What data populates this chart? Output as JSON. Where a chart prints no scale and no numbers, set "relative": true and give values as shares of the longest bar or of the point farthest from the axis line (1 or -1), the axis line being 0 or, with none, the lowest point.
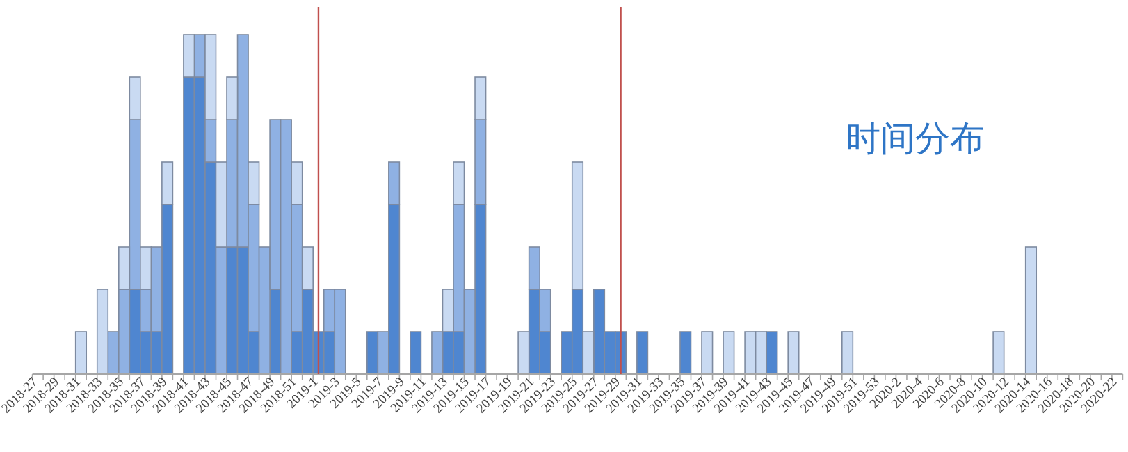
{
  "chart_data": {
    "type": "bar",
    "title": "时间分布",
    "stacked": true,
    "relative": true,
    "categories": [
      "2018-27",
      null,
      "2018-29",
      null,
      "2018-31",
      null,
      "2018-33",
      null,
      "2018-35",
      null,
      "2018-37",
      null,
      "2018-39",
      null,
      "2018-41",
      null,
      "2018-43",
      null,
      "2018-45",
      null,
      "2018-47",
      null,
      "2018-49",
      null,
      "2018-51",
      null,
      "2019-1",
      null,
      "2019-3",
      null,
      "2019-5",
      null,
      "2019-7",
      null,
      "2019-9",
      null,
      "2019-11",
      null,
      "2019-13",
      null,
      "2019-15",
      null,
      "2019-17",
      null,
      "2019-19",
      null,
      "2019-21",
      null,
      "2019-23",
      null,
      "2019-25",
      null,
      "2019-27",
      null,
      "2019-29",
      null,
      "2019-31",
      null,
      "2019-33",
      null,
      "2019-35",
      null,
      "2019-37",
      null,
      "2019-39",
      null,
      "2019-41",
      null,
      "2019-43",
      null,
      "2019-45",
      null,
      "2019-47",
      null,
      "2019-49",
      null,
      "2019-51",
      null,
      "2019-53",
      null,
      "2020-2",
      null,
      "2020-4",
      null,
      "2020-6",
      null,
      "2020-8",
      null,
      "2020-10",
      null,
      "2020-12",
      null,
      "2020-14",
      null,
      "2020-16",
      null,
      "2020-18",
      null,
      "2020-20",
      null,
      "2020-22"
    ],
    "series": [
      {
        "color": "#4f86d0",
        "values": [
          null,
          null,
          null,
          null,
          null,
          null,
          null,
          null,
          null,
          0.25,
          0.125,
          0.125,
          0.5,
          null,
          0.875,
          0.875,
          0.625,
          null,
          0.375,
          0.375,
          0.125,
          null,
          0.25,
          null,
          0.125,
          0.25,
          0.125,
          0.125,
          null,
          null,
          null,
          0.125,
          null,
          0.5,
          null,
          0.125,
          null,
          null,
          0.125,
          0.125,
          null,
          0.5,
          null,
          null,
          null,
          null,
          0.25,
          0.125,
          null,
          0.125,
          0.25,
          null,
          0.25,
          0.125,
          0.125,
          null,
          0.125,
          null,
          null,
          null,
          0.125,
          null,
          null,
          null,
          null,
          null,
          null,
          null,
          0.125,
          null,
          null,
          null,
          null,
          null,
          null,
          null,
          null,
          null,
          null,
          null,
          null,
          null,
          null,
          null,
          null,
          null,
          null,
          null,
          null,
          null,
          null,
          null,
          null,
          null,
          null,
          null,
          null,
          null,
          null,
          null,
          null
        ]
      },
      {
        "color": "#8fb1e3",
        "values": [
          null,
          null,
          null,
          null,
          null,
          null,
          null,
          0.125,
          0.25,
          0.5,
          0.125,
          0.25,
          null,
          null,
          null,
          0.125,
          0.125,
          0.375,
          0.375,
          0.625,
          0.375,
          0.375,
          0.5,
          0.75,
          0.375,
          null,
          null,
          0.125,
          0.25,
          null,
          null,
          null,
          0.125,
          0.125,
          null,
          null,
          null,
          0.125,
          null,
          0.375,
          0.25,
          0.25,
          null,
          null,
          null,
          null,
          0.125,
          0.125,
          null,
          null,
          null,
          null,
          null,
          null,
          null,
          null,
          null,
          null,
          null,
          null,
          null,
          null,
          null,
          null,
          null,
          null,
          null,
          null,
          null,
          null,
          null,
          null,
          null,
          null,
          null,
          null,
          null,
          null,
          null,
          null,
          null,
          null,
          null,
          null,
          null,
          null,
          null,
          null,
          null,
          null,
          null,
          null,
          null,
          null,
          null,
          null,
          null,
          null,
          null,
          null,
          null
        ]
      },
      {
        "color": "#c9daf2",
        "values": [
          null,
          null,
          null,
          null,
          0.125,
          null,
          0.25,
          null,
          0.125,
          0.125,
          0.125,
          null,
          0.125,
          null,
          0.125,
          null,
          0.25,
          0.25,
          0.125,
          null,
          0.125,
          null,
          null,
          null,
          0.125,
          0.125,
          null,
          null,
          null,
          null,
          null,
          null,
          null,
          null,
          null,
          null,
          null,
          null,
          0.125,
          0.125,
          null,
          0.125,
          null,
          null,
          null,
          0.125,
          null,
          null,
          null,
          null,
          0.375,
          0.125,
          null,
          null,
          null,
          null,
          null,
          null,
          null,
          null,
          null,
          null,
          0.125,
          null,
          0.125,
          null,
          0.125,
          0.125,
          null,
          null,
          0.125,
          null,
          null,
          null,
          null,
          0.125,
          null,
          null,
          null,
          null,
          null,
          null,
          null,
          null,
          null,
          null,
          null,
          null,
          null,
          0.125,
          null,
          null,
          0.375,
          null,
          null,
          null,
          null,
          null,
          null,
          null,
          null
        ]
      }
    ],
    "ref_lines": [
      {
        "axis": "x",
        "value": "2019-1",
        "color": "#c0504d"
      },
      {
        "axis": "x",
        "value": "2019-29",
        "color": "#c0504d"
      }
    ]
  }
}
